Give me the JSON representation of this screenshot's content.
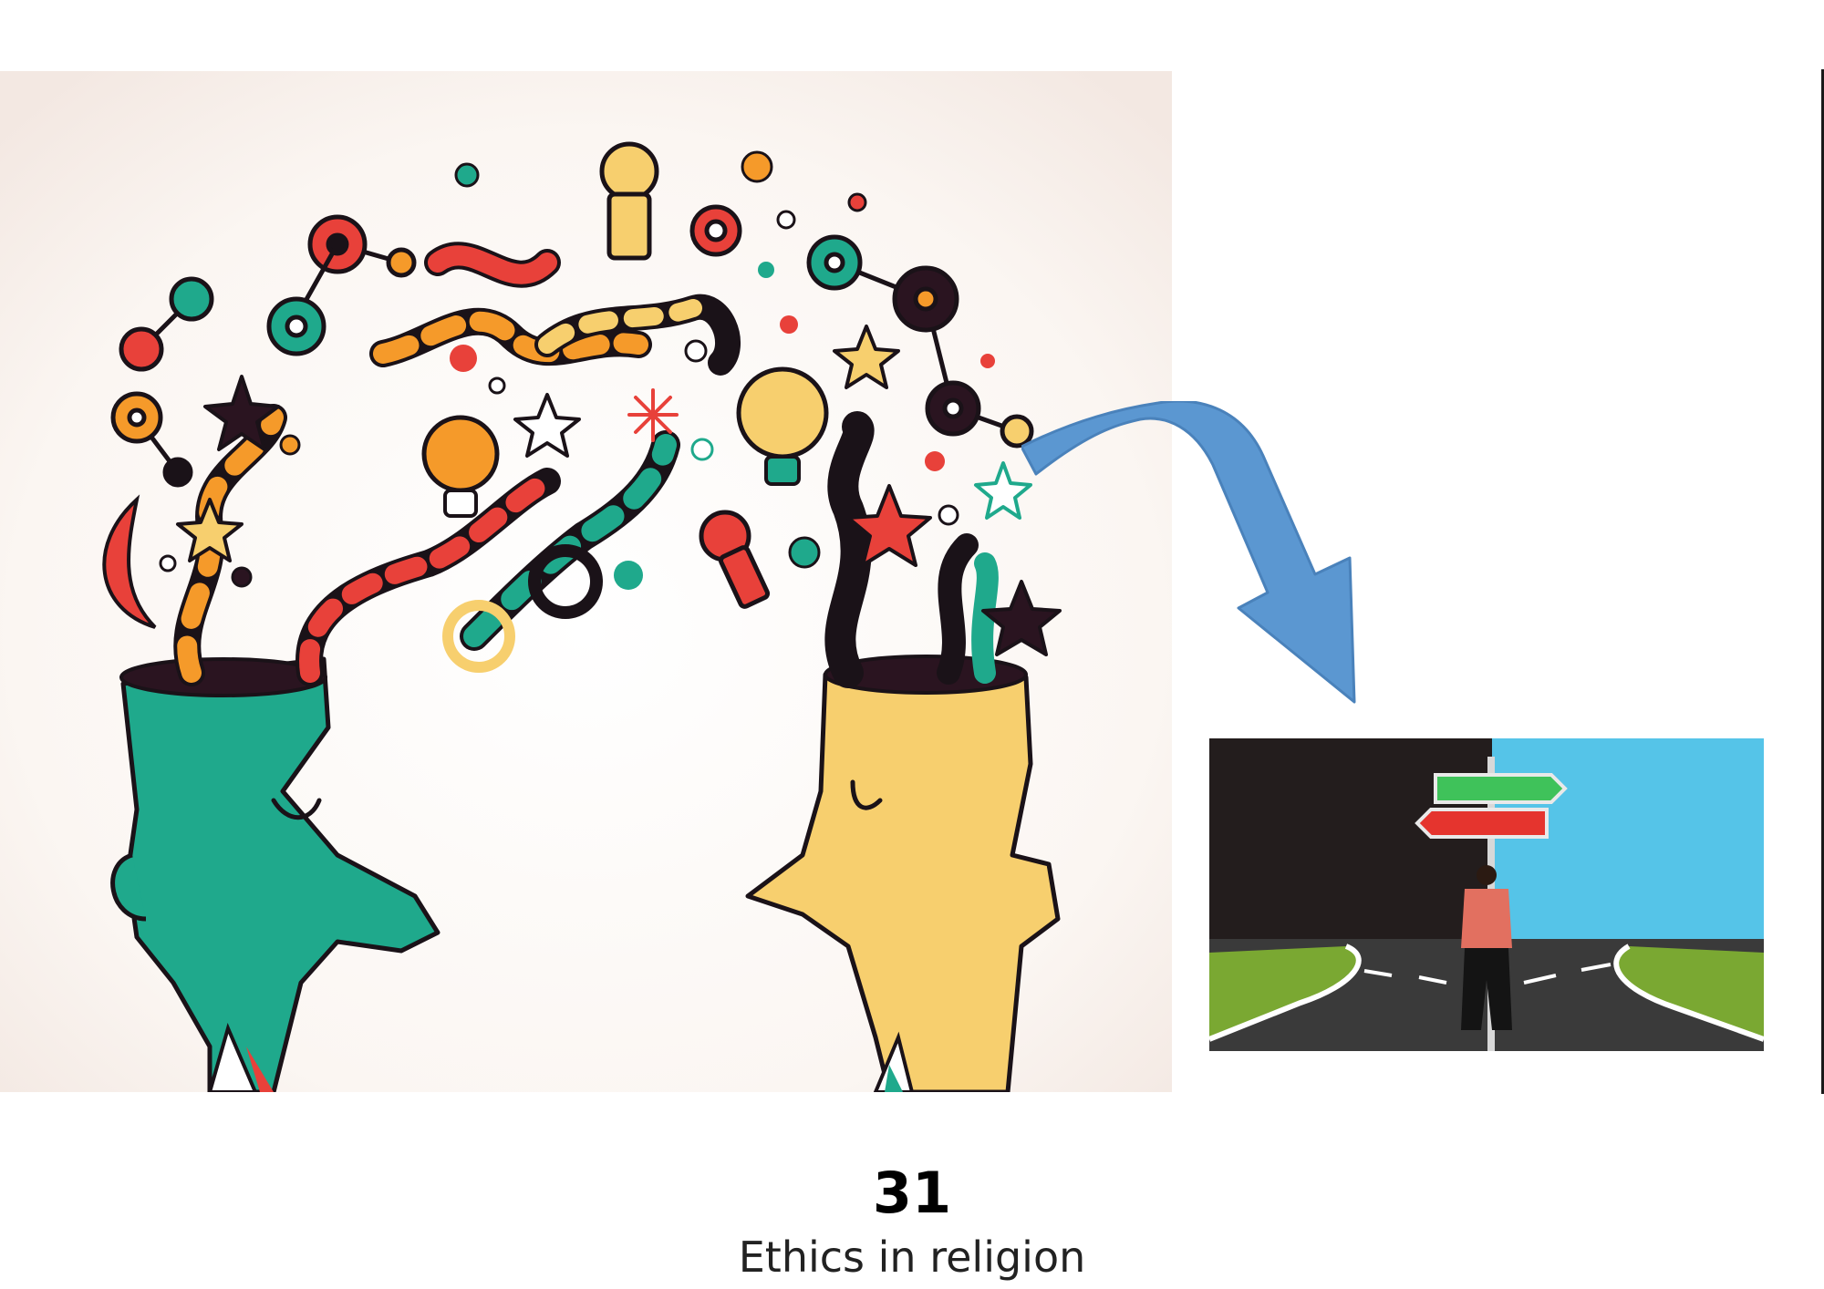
{
  "page": {
    "number": "31",
    "caption": "Ethics in religion"
  },
  "illustration": {
    "icon": "sharing-ideas-heads-illustration",
    "heads": [
      "green-head",
      "yellow-head"
    ]
  },
  "arrow": {
    "icon": "curved-arrow-down-right",
    "color": "#5b97d1"
  },
  "crossroads": {
    "icon": "crossroads-signpost-illustration",
    "sign_colors": {
      "top": "#3fc25a",
      "bottom": "#e5342e"
    }
  },
  "colors": {
    "teal": "#1fa98c",
    "yellow": "#f7cf6e",
    "red": "#e8413a",
    "orange": "#f59a2a",
    "dark": "#2a1420",
    "cream": "#f8f1ec",
    "sky": "#55c4e8"
  }
}
